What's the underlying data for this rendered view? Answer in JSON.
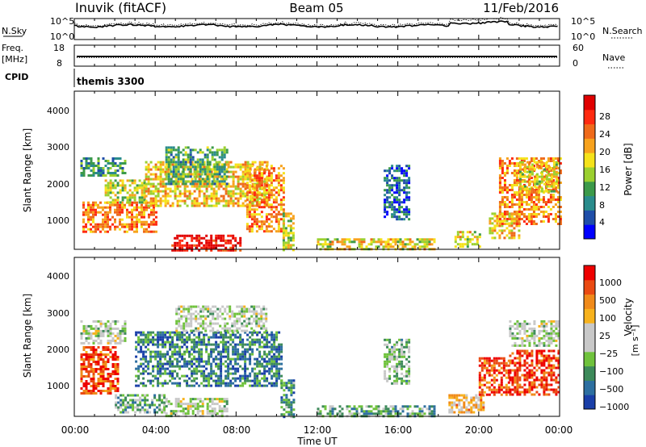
{
  "header": {
    "station": "Inuvik (fitACF)",
    "beam": "Beam 05",
    "date": "11/Feb/2016"
  },
  "top_panels": {
    "nsky_label": "N.Sky",
    "nsky_ticks": [
      "10^5",
      "10^0"
    ],
    "nsearch_label": "N.Search",
    "nsearch_ticks": [
      "10^5",
      "10^0"
    ],
    "freq_label": "Freq.",
    "freq_unit": "[MHz]",
    "freq_ticks": [
      "18",
      "8"
    ],
    "nave_label": "Nave",
    "nave_ticks": [
      "60",
      "0"
    ],
    "cpid_label": "CPID",
    "cpid_value": "themis 3300"
  },
  "chart_data": [
    {
      "type": "heatmap",
      "name": "power",
      "ylabel": "Slant Range [km]",
      "yticks": [
        "4000",
        "3000",
        "2000",
        "1000"
      ],
      "colorbar_label": "Power [dB]",
      "colorbar_ticks": [
        "28",
        "24",
        "20",
        "16",
        "12",
        "8",
        "4"
      ],
      "colors": [
        "#0000ff",
        "#1f4ea8",
        "#2a8c8c",
        "#3c9a4a",
        "#9bd02f",
        "#f5e21a",
        "#f7a21d",
        "#ef6a1a",
        "#ff2a10",
        "#e00000"
      ],
      "regions": [
        {
          "t": [
            0.4,
            4.0
          ],
          "r": [
            700,
            1500
          ],
          "level": 0.72
        },
        {
          "t": [
            1.5,
            3.5
          ],
          "r": [
            1500,
            2100
          ],
          "level": 0.5
        },
        {
          "t": [
            0.3,
            2.5
          ],
          "r": [
            2200,
            2700
          ],
          "level": 0.3
        },
        {
          "t": [
            3.5,
            9.5
          ],
          "r": [
            1400,
            2600
          ],
          "level": 0.6
        },
        {
          "t": [
            4.5,
            7.5
          ],
          "r": [
            2000,
            3000
          ],
          "level": 0.35
        },
        {
          "t": [
            4.8,
            8.2
          ],
          "r": [
            200,
            600
          ],
          "level": 0.95
        },
        {
          "t": [
            8.5,
            10.4
          ],
          "r": [
            700,
            2500
          ],
          "level": 0.7
        },
        {
          "t": [
            10.3,
            10.8
          ],
          "r": [
            200,
            1200
          ],
          "level": 0.5
        },
        {
          "t": [
            12.0,
            17.8
          ],
          "r": [
            200,
            500
          ],
          "level": 0.55
        },
        {
          "t": [
            15.3,
            16.5
          ],
          "r": [
            1000,
            2500
          ],
          "level": 0.2
        },
        {
          "t": [
            18.8,
            20.0
          ],
          "r": [
            300,
            700
          ],
          "level": 0.55
        },
        {
          "t": [
            20.5,
            22.0
          ],
          "r": [
            500,
            1200
          ],
          "level": 0.6
        },
        {
          "t": [
            21.0,
            24.0
          ],
          "r": [
            900,
            2700
          ],
          "level": 0.7
        },
        {
          "t": [
            22.0,
            23.8
          ],
          "r": [
            1800,
            2600
          ],
          "level": 0.55
        }
      ]
    },
    {
      "type": "heatmap",
      "name": "velocity",
      "ylabel": "Slant Range [km]",
      "yticks": [
        "4000",
        "3000",
        "2000",
        "1000"
      ],
      "colorbar_label": "Velocity",
      "colorbar_unit": "[m s⁻¹]",
      "colorbar_ticks": [
        "1000",
        "500",
        "100",
        "25",
        "−25",
        "−100",
        "−500",
        "−1000"
      ],
      "colors": [
        "#1a3fa8",
        "#2d6fa0",
        "#3d8a5a",
        "#6fc23c",
        "#c8c8c8",
        "#c8c8c8",
        "#f7b21d",
        "#f08a1a",
        "#ea4a12",
        "#ee0000"
      ],
      "regions": [
        {
          "t": [
            0.3,
            2.2
          ],
          "r": [
            800,
            2100
          ],
          "level": 0.85
        },
        {
          "t": [
            0.3,
            2.5
          ],
          "r": [
            2200,
            2800
          ],
          "level": 0.45
        },
        {
          "t": [
            2.0,
            4.5
          ],
          "r": [
            300,
            800
          ],
          "level": 0.3
        },
        {
          "t": [
            3.0,
            10.3
          ],
          "r": [
            1000,
            2500
          ],
          "level": 0.2
        },
        {
          "t": [
            4.5,
            7.5
          ],
          "r": [
            200,
            700
          ],
          "level": 0.45
        },
        {
          "t": [
            5.0,
            9.5
          ],
          "r": [
            2500,
            3200
          ],
          "level": 0.45
        },
        {
          "t": [
            10.2,
            10.8
          ],
          "r": [
            200,
            1200
          ],
          "level": 0.25
        },
        {
          "t": [
            12.0,
            17.8
          ],
          "r": [
            200,
            500
          ],
          "level": 0.3
        },
        {
          "t": [
            15.3,
            16.5
          ],
          "r": [
            1100,
            2300
          ],
          "level": 0.35
        },
        {
          "t": [
            18.5,
            20.2
          ],
          "r": [
            300,
            800
          ],
          "level": 0.65
        },
        {
          "t": [
            20.0,
            21.5
          ],
          "r": [
            800,
            1800
          ],
          "level": 0.85
        },
        {
          "t": [
            21.5,
            24.0
          ],
          "r": [
            800,
            2000
          ],
          "level": 0.9
        },
        {
          "t": [
            21.5,
            24.0
          ],
          "r": [
            2100,
            2800
          ],
          "level": 0.45
        }
      ]
    }
  ],
  "xaxis": {
    "label": "Time UT",
    "ticks": [
      "00:00",
      "04:00",
      "08:00",
      "12:00",
      "16:00",
      "20:00",
      "00:00"
    ],
    "range": [
      0,
      24
    ]
  },
  "range_axis": [
    200,
    4500
  ]
}
